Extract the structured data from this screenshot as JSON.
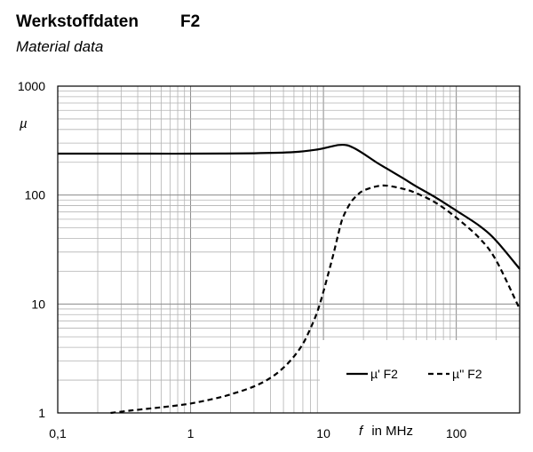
{
  "header": {
    "title": "Werkstoffdaten",
    "title_code": "F2",
    "subtitle": "Material data"
  },
  "chart_data": {
    "type": "line",
    "x_scale": "log",
    "y_scale": "log",
    "xlim": [
      0.1,
      300
    ],
    "ylim": [
      1,
      1000
    ],
    "xlabel_symbol": "f",
    "xlabel_unit": "in MHz",
    "ylabel": "µ",
    "x_tick_labels": [
      {
        "value": 0.1,
        "label": "0,1"
      },
      {
        "value": 1,
        "label": "1"
      },
      {
        "value": 10,
        "label": "10"
      },
      {
        "value": 100,
        "label": "100"
      }
    ],
    "y_tick_labels": [
      {
        "value": 1,
        "label": "1"
      },
      {
        "value": 10,
        "label": "10"
      },
      {
        "value": 100,
        "label": "100"
      },
      {
        "value": 1000,
        "label": "1000"
      }
    ],
    "grid": true,
    "legend_position": "bottom-right",
    "series": [
      {
        "name": "µ' F2",
        "style": "solid",
        "x": [
          0.1,
          0.5,
          1,
          3,
          6,
          9,
          11,
          13,
          15,
          17,
          20,
          25,
          30,
          40,
          50,
          70,
          100,
          150,
          200,
          300
        ],
        "y": [
          240,
          240,
          240,
          242,
          248,
          262,
          276,
          288,
          287,
          270,
          240,
          200,
          175,
          142,
          120,
          95,
          72,
          52,
          38,
          21
        ]
      },
      {
        "name": "µ'' F2",
        "style": "dashed",
        "x": [
          0.25,
          0.35,
          0.5,
          0.7,
          1,
          1.5,
          2,
          3,
          4,
          5,
          6,
          7,
          8,
          9,
          10,
          11,
          12,
          13,
          14,
          16,
          18,
          20,
          25,
          30,
          40,
          50,
          70,
          100,
          150,
          200,
          300
        ],
        "y": [
          1.0,
          1.05,
          1.1,
          1.15,
          1.22,
          1.35,
          1.48,
          1.75,
          2.1,
          2.6,
          3.3,
          4.3,
          6.0,
          8.5,
          13,
          20,
          30,
          45,
          62,
          85,
          100,
          110,
          120,
          122,
          114,
          104,
          85,
          62,
          40,
          25,
          9
        ]
      }
    ]
  }
}
